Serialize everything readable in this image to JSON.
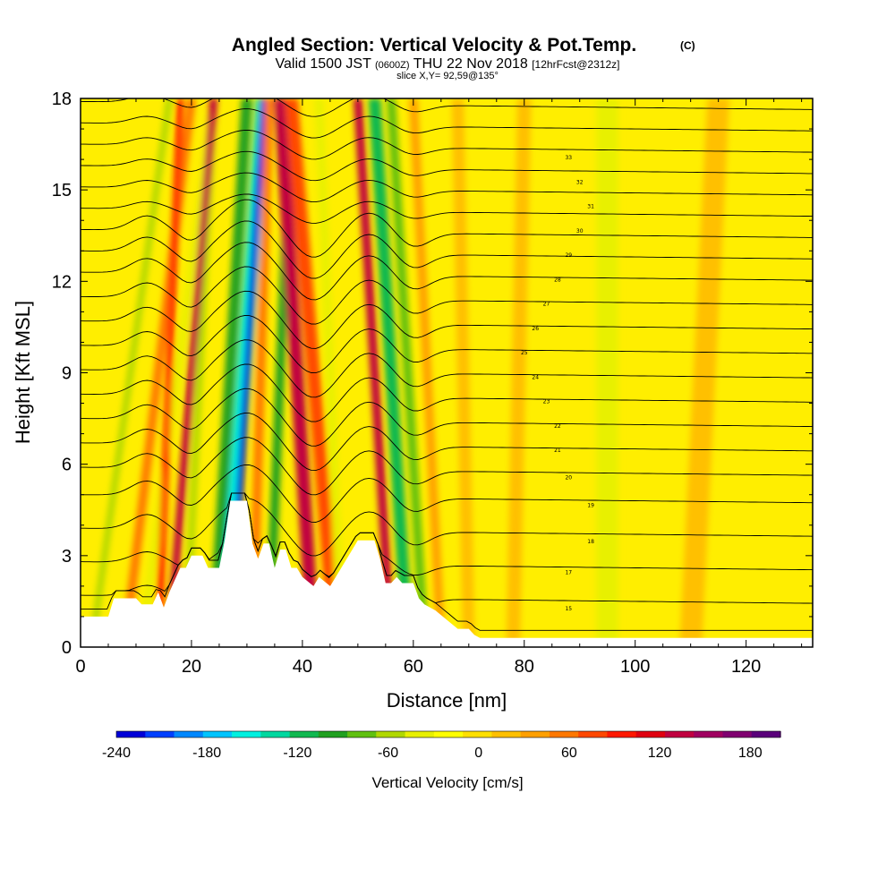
{
  "header": {
    "title": "Angled Section: Vertical Velocity & Pot.Temp.",
    "title_tag": "(C)",
    "valid_prefix": "Valid 1500 JST",
    "valid_utc": "(0600Z)",
    "valid_date": "THU 22 Nov 2018",
    "forecast": "[12hrFcst@2312z]",
    "slice": "slice X,Y= 92,59@135°"
  },
  "chart_data": {
    "type": "heatmap",
    "xlabel": "Distance [nm]",
    "ylabel": "Height [Kft MSL]",
    "xlim": [
      0,
      132
    ],
    "ylim": [
      0,
      18
    ],
    "xticks": [
      0,
      20,
      40,
      60,
      80,
      100,
      120
    ],
    "yticks": [
      0,
      3,
      6,
      9,
      12,
      15,
      18
    ],
    "colorbar": {
      "label": "Vertical Velocity [cm/s]",
      "ticks": [
        -240,
        -180,
        -120,
        -60,
        0,
        60,
        120,
        180
      ],
      "range": [
        -240,
        200
      ],
      "colors": [
        "#0000d8",
        "#0040ff",
        "#0088ff",
        "#00c4ff",
        "#00f0e0",
        "#00d8a0",
        "#10b850",
        "#20a020",
        "#60c010",
        "#b0d800",
        "#e8f000",
        "#ffff00",
        "#ffe000",
        "#ffc000",
        "#ffa000",
        "#ff7800",
        "#ff4800",
        "#ff1800",
        "#e00010",
        "#c00040",
        "#a00060",
        "#800070",
        "#5a007a"
      ]
    },
    "terrain_kft": [
      [
        0,
        1.0
      ],
      [
        5,
        1.0
      ],
      [
        6,
        1.6
      ],
      [
        10,
        1.6
      ],
      [
        11,
        1.4
      ],
      [
        13,
        1.4
      ],
      [
        14,
        1.8
      ],
      [
        15,
        1.3
      ],
      [
        16,
        1.8
      ],
      [
        17,
        2.2
      ],
      [
        18,
        2.6
      ],
      [
        19,
        2.6
      ],
      [
        20,
        3.0
      ],
      [
        22,
        3.0
      ],
      [
        23,
        2.6
      ],
      [
        25,
        2.6
      ],
      [
        26,
        3.5
      ],
      [
        27,
        4.8
      ],
      [
        30,
        4.8
      ],
      [
        31,
        3.4
      ],
      [
        32,
        2.9
      ],
      [
        33,
        3.4
      ],
      [
        34,
        3.4
      ],
      [
        35,
        2.6
      ],
      [
        36,
        3.2
      ],
      [
        37,
        3.2
      ],
      [
        38,
        2.6
      ],
      [
        39,
        2.6
      ],
      [
        40,
        2.3
      ],
      [
        42,
        2.0
      ],
      [
        43,
        2.3
      ],
      [
        45,
        2.0
      ],
      [
        46,
        2.3
      ],
      [
        47,
        2.6
      ],
      [
        48,
        2.9
      ],
      [
        49,
        3.2
      ],
      [
        50,
        3.5
      ],
      [
        53,
        3.5
      ],
      [
        54,
        2.9
      ],
      [
        55,
        2.1
      ],
      [
        56,
        2.1
      ],
      [
        57,
        2.3
      ],
      [
        58,
        2.1
      ],
      [
        60,
        2.1
      ],
      [
        61,
        1.6
      ],
      [
        62,
        1.4
      ],
      [
        64,
        1.2
      ],
      [
        66,
        0.9
      ],
      [
        68,
        0.6
      ],
      [
        70,
        0.6
      ],
      [
        71,
        0.4
      ],
      [
        72,
        0.3
      ],
      [
        80,
        0.3
      ],
      [
        90,
        0.3
      ],
      [
        110,
        0.3
      ],
      [
        132,
        0.3
      ]
    ],
    "ww_bands": [
      {
        "x0": 2,
        "x1": 16,
        "w": -60,
        "width": 1.2
      },
      {
        "x0": 8,
        "x1": 20,
        "w": 60,
        "width": 1.6
      },
      {
        "x0": 11,
        "x1": 24,
        "w": -40,
        "width": 1.2
      },
      {
        "x0": 14,
        "x1": 18,
        "w": 100,
        "width": 1.2
      },
      {
        "x0": 19,
        "x1": 24,
        "w": -60,
        "width": 1.2
      },
      {
        "x0": 16,
        "x1": 24,
        "w": 130,
        "width": 1.4
      },
      {
        "x0": 24,
        "x1": 30,
        "w": -100,
        "width": 2.0
      },
      {
        "x0": 26,
        "x1": 33,
        "w": -150,
        "width": 2.5
      },
      {
        "x0": 27,
        "x1": 33,
        "w": -240,
        "width": 1.2
      },
      {
        "x0": 31,
        "x1": 34,
        "w": 60,
        "width": 1.6
      },
      {
        "x0": 34,
        "x1": 38,
        "w": -90,
        "width": 1.6
      },
      {
        "x0": 42,
        "x1": 36,
        "w": 140,
        "width": 2.4
      },
      {
        "x0": 46,
        "x1": 38,
        "w": 70,
        "width": 2.4
      },
      {
        "x0": 47,
        "x1": 43,
        "w": -40,
        "width": 1.6
      },
      {
        "x0": 56,
        "x1": 50,
        "w": 130,
        "width": 1.6
      },
      {
        "x0": 59,
        "x1": 53,
        "w": -110,
        "width": 2.2
      },
      {
        "x0": 62,
        "x1": 56,
        "w": -80,
        "width": 1.6
      },
      {
        "x0": 65,
        "x1": 60,
        "w": 40,
        "width": 1.6
      },
      {
        "x0": 70,
        "x1": 68,
        "w": 25,
        "width": 2.2
      },
      {
        "x0": 78,
        "x1": 80,
        "w": 20,
        "width": 2.5
      },
      {
        "x0": 95,
        "x1": 95,
        "w": -40,
        "width": 4.0
      },
      {
        "x0": 110,
        "x1": 115,
        "w": 12,
        "width": 4.0
      }
    ],
    "theta_levels": [
      0.6,
      1.7,
      2.8,
      3.9,
      5.0,
      5.9,
      6.7,
      7.5,
      8.3,
      9.1,
      9.9,
      10.7,
      11.5,
      12.3,
      13.0,
      13.7,
      14.4,
      15.1,
      15.8,
      16.5,
      17.2,
      17.9
    ],
    "contour_labels": [
      "15",
      "17",
      "18",
      "19",
      "20",
      "21",
      "22",
      "23",
      "24",
      "25",
      "26",
      "27",
      "28",
      "29",
      "30",
      "31",
      "32",
      "33"
    ]
  }
}
